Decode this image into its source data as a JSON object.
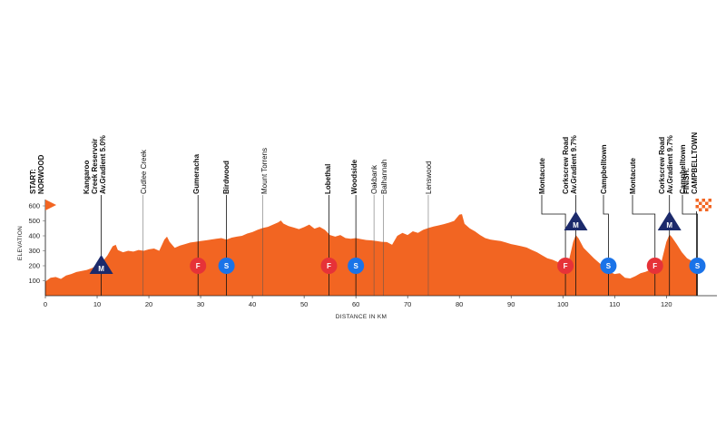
{
  "chart_data": {
    "type": "area",
    "xlabel": "DISTANCE IN KM",
    "ylabel": "ELEVATION",
    "xlim": [
      0,
      126
    ],
    "ylim": [
      0,
      600
    ],
    "x_ticks": [
      0,
      10,
      20,
      30,
      40,
      50,
      60,
      70,
      80,
      90,
      100,
      110,
      120
    ],
    "y_ticks": [
      100,
      200,
      300,
      400,
      500,
      600
    ],
    "colors": {
      "profile": "#f26522",
      "kom": "#1c2a6b",
      "feed": "#e63238",
      "sprint": "#1a73e8",
      "line": "#111111"
    },
    "profile": [
      [
        0,
        95
      ],
      [
        1,
        120
      ],
      [
        2,
        125
      ],
      [
        3,
        112
      ],
      [
        4,
        135
      ],
      [
        5,
        145
      ],
      [
        6,
        158
      ],
      [
        7,
        165
      ],
      [
        8,
        172
      ],
      [
        9,
        185
      ],
      [
        10,
        200
      ],
      [
        11,
        225
      ],
      [
        12,
        270
      ],
      [
        13,
        330
      ],
      [
        13.6,
        340
      ],
      [
        14,
        305
      ],
      [
        15,
        290
      ],
      [
        16,
        300
      ],
      [
        17,
        295
      ],
      [
        18,
        305
      ],
      [
        19,
        300
      ],
      [
        20,
        310
      ],
      [
        21,
        315
      ],
      [
        22,
        300
      ],
      [
        23,
        375
      ],
      [
        23.5,
        395
      ],
      [
        24,
        360
      ],
      [
        25,
        320
      ],
      [
        26,
        335
      ],
      [
        27,
        345
      ],
      [
        28,
        355
      ],
      [
        29,
        360
      ],
      [
        30,
        365
      ],
      [
        31,
        370
      ],
      [
        32,
        375
      ],
      [
        33,
        380
      ],
      [
        34,
        385
      ],
      [
        35,
        375
      ],
      [
        36,
        388
      ],
      [
        37,
        395
      ],
      [
        38,
        400
      ],
      [
        39,
        415
      ],
      [
        40,
        425
      ],
      [
        41,
        440
      ],
      [
        42,
        452
      ],
      [
        43,
        460
      ],
      [
        44,
        475
      ],
      [
        45,
        490
      ],
      [
        45.5,
        502
      ],
      [
        46,
        482
      ],
      [
        47,
        465
      ],
      [
        48,
        455
      ],
      [
        49,
        445
      ],
      [
        50,
        458
      ],
      [
        51,
        475
      ],
      [
        52,
        448
      ],
      [
        53,
        460
      ],
      [
        54,
        440
      ],
      [
        55,
        405
      ],
      [
        56,
        395
      ],
      [
        57,
        405
      ],
      [
        58,
        385
      ],
      [
        59,
        380
      ],
      [
        60,
        385
      ],
      [
        61,
        378
      ],
      [
        62,
        372
      ],
      [
        63,
        370
      ],
      [
        64,
        365
      ],
      [
        65,
        360
      ],
      [
        66,
        358
      ],
      [
        67,
        340
      ],
      [
        68,
        400
      ],
      [
        69,
        420
      ],
      [
        70,
        405
      ],
      [
        71,
        430
      ],
      [
        72,
        420
      ],
      [
        73,
        440
      ],
      [
        74,
        452
      ],
      [
        75,
        462
      ],
      [
        76,
        470
      ],
      [
        77,
        478
      ],
      [
        78,
        488
      ],
      [
        79,
        500
      ],
      [
        80,
        542
      ],
      [
        80.5,
        545
      ],
      [
        81,
        480
      ],
      [
        82,
        450
      ],
      [
        83,
        430
      ],
      [
        84,
        405
      ],
      [
        85,
        385
      ],
      [
        86,
        375
      ],
      [
        87,
        370
      ],
      [
        88,
        365
      ],
      [
        89,
        355
      ],
      [
        90,
        345
      ],
      [
        91,
        338
      ],
      [
        92,
        330
      ],
      [
        93,
        322
      ],
      [
        94,
        305
      ],
      [
        95,
        290
      ],
      [
        96,
        270
      ],
      [
        97,
        250
      ],
      [
        98,
        240
      ],
      [
        99,
        225
      ],
      [
        100,
        200
      ],
      [
        101,
        210
      ],
      [
        102,
        360
      ],
      [
        102.5,
        405
      ],
      [
        103,
        385
      ],
      [
        104,
        320
      ],
      [
        105,
        285
      ],
      [
        106,
        250
      ],
      [
        107,
        220
      ],
      [
        108,
        190
      ],
      [
        109,
        160
      ],
      [
        110,
        145
      ],
      [
        111,
        150
      ],
      [
        112,
        120
      ],
      [
        113,
        115
      ],
      [
        114,
        130
      ],
      [
        115,
        150
      ],
      [
        116,
        160
      ],
      [
        117,
        175
      ],
      [
        118,
        190
      ],
      [
        119,
        220
      ],
      [
        120,
        360
      ],
      [
        120.6,
        408
      ],
      [
        121,
        395
      ],
      [
        122,
        345
      ],
      [
        123,
        290
      ],
      [
        124,
        250
      ],
      [
        125,
        230
      ],
      [
        126,
        205
      ]
    ],
    "start_label": "START:\nNORWOOD",
    "finish_label": "FINISH:\nCAMPBELLTOWN",
    "locations": [
      {
        "km": 0,
        "name": "START:\nNORWOOD",
        "bold": true,
        "marker": "start"
      },
      {
        "km": 10.8,
        "name": "Kangaroo\nCreek Reservoir\nAv.Gradient 5.0%",
        "bold": true,
        "marker": "kom"
      },
      {
        "km": 18.9,
        "name": "Cudlee Creek",
        "bold": false,
        "marker": "none"
      },
      {
        "km": 29.5,
        "name": "Gumeracha",
        "bold": true,
        "marker": "feed"
      },
      {
        "km": 35,
        "name": "Birdwood",
        "bold": true,
        "marker": "sprint"
      },
      {
        "km": 42,
        "name": "Mount Torrens",
        "bold": false,
        "marker": "none"
      },
      {
        "km": 54.8,
        "name": "Lobethal",
        "bold": true,
        "marker": "feed"
      },
      {
        "km": 60,
        "name": "Woodside",
        "bold": true,
        "marker": "sprint"
      },
      {
        "km": 63.5,
        "name": "Oakbank",
        "bold": false,
        "marker": "none"
      },
      {
        "km": 65.3,
        "name": "Balhannah",
        "bold": false,
        "marker": "none"
      },
      {
        "km": 74,
        "name": "Lenswood",
        "bold": false,
        "marker": "none"
      },
      {
        "km": 100.5,
        "name": "Montacute",
        "bold": true,
        "marker": "feed"
      },
      {
        "km": 102.5,
        "name": "Corkscrew Road\nAv.Gradient 9.7%",
        "bold": true,
        "marker": "kom"
      },
      {
        "km": 108.8,
        "name": "Campbelltown",
        "bold": true,
        "marker": "sprint"
      },
      {
        "km": 117.8,
        "name": "Montacute",
        "bold": true,
        "marker": "feed"
      },
      {
        "km": 120.6,
        "name": "Corkscrew Road\nAv.Gradient 9.7%",
        "bold": true,
        "marker": "kom"
      },
      {
        "km": 126,
        "name": "Campbelltown",
        "bold": true,
        "marker": "sprint"
      },
      {
        "km": 126,
        "name": "FINISH:\nCAMPBELLTOWN",
        "bold": true,
        "marker": "finish"
      }
    ],
    "badges": {
      "kom": "M",
      "feed": "F",
      "sprint": "S"
    }
  }
}
